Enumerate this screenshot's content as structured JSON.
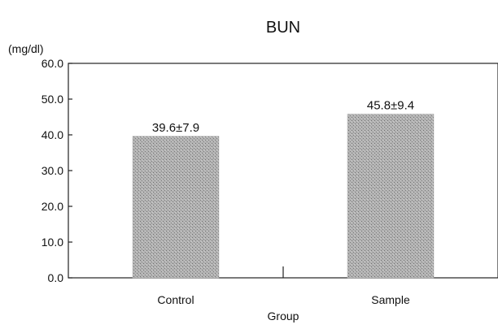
{
  "chart_data": {
    "type": "bar",
    "title": "BUN",
    "unit_label": "(mg/dl)",
    "xlabel": "Group",
    "ylabel": "",
    "categories": [
      "Control",
      "Sample"
    ],
    "values": [
      39.6,
      45.8
    ],
    "errors": [
      7.9,
      9.4
    ],
    "data_labels": [
      "39.6±7.9",
      "45.8±9.4"
    ],
    "ylim": [
      0,
      60
    ],
    "yticks": [
      "0.0",
      "10.0",
      "20.0",
      "30.0",
      "40.0",
      "50.0",
      "60.0"
    ],
    "grid": false,
    "legend": "none",
    "bar_color": "#a9a9a9"
  }
}
